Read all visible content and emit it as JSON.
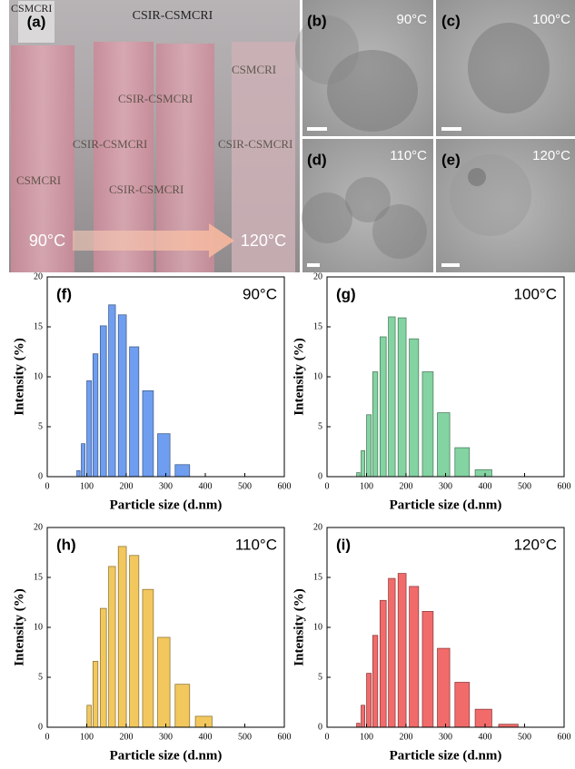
{
  "photos": {
    "a": {
      "label": "(a)",
      "top_text": "CSIR-CSMCRI",
      "corner_text": "CSMCRI",
      "start": "90°C",
      "end": "120°C",
      "watermarks": [
        "CSIR-CSMCRI",
        "CSIR-CSMCRI",
        "CSIR-CSMCRI",
        "CSMCRI",
        "CSIR-CSMCRI",
        "CSMCRI"
      ]
    },
    "tem": [
      {
        "label": "(b)",
        "temp": "90°C"
      },
      {
        "label": "(c)",
        "temp": "100°C"
      },
      {
        "label": "(d)",
        "temp": "110°C"
      },
      {
        "label": "(e)",
        "temp": "120°C"
      }
    ]
  },
  "chart_data": [
    {
      "type": "bar",
      "label": "(f)",
      "annotation": "90°C",
      "xlabel": "Particle size (d.nm)",
      "ylabel": "Intensity (%)",
      "color": "#6f9ef0",
      "x": [
        79,
        91,
        106,
        122,
        142,
        164,
        190,
        220,
        255,
        295,
        342
      ],
      "values": [
        0.6,
        3.3,
        9.6,
        12.3,
        15.1,
        17.2,
        16.2,
        13.0,
        8.6,
        4.3,
        1.2
      ],
      "xlim": [
        0,
        600
      ],
      "xticks": [
        0,
        100,
        200,
        300,
        400,
        500,
        600
      ],
      "ylim": [
        0,
        20
      ],
      "yticks": [
        0,
        5,
        10,
        15,
        20
      ]
    },
    {
      "type": "bar",
      "label": "(g)",
      "annotation": "100°C",
      "xlabel": "Particle size (d.nm)",
      "ylabel": "Intensity (%)",
      "color": "#84d3a2",
      "x": [
        79,
        91,
        106,
        122,
        142,
        164,
        190,
        220,
        255,
        295,
        342,
        396
      ],
      "values": [
        0.4,
        2.6,
        6.2,
        10.5,
        14.0,
        16.0,
        15.9,
        13.8,
        10.5,
        6.4,
        2.9,
        0.7
      ],
      "xlim": [
        0,
        600
      ],
      "xticks": [
        0,
        100,
        200,
        300,
        400,
        500,
        600
      ],
      "ylim": [
        0,
        20
      ],
      "yticks": [
        0,
        5,
        10,
        15,
        20
      ]
    },
    {
      "type": "bar",
      "label": "(h)",
      "annotation": "110°C",
      "xlabel": "Particle size (d.nm)",
      "ylabel": "Intensity (%)",
      "color": "#f2c85e",
      "x": [
        106,
        122,
        142,
        164,
        190,
        220,
        255,
        295,
        342,
        396
      ],
      "values": [
        2.2,
        6.6,
        11.9,
        16.1,
        18.1,
        17.2,
        13.8,
        9.0,
        4.3,
        1.1
      ],
      "xlim": [
        0,
        600
      ],
      "xticks": [
        0,
        100,
        200,
        300,
        400,
        500,
        600
      ],
      "ylim": [
        0,
        20
      ],
      "yticks": [
        0,
        5,
        10,
        15,
        20
      ]
    },
    {
      "type": "bar",
      "label": "(i)",
      "annotation": "120°C",
      "xlabel": "Particle size (d.nm)",
      "ylabel": "Intensity (%)",
      "color": "#f26b6b",
      "x": [
        79,
        91,
        106,
        122,
        142,
        164,
        190,
        220,
        255,
        295,
        342,
        396,
        459
      ],
      "values": [
        0.4,
        2.2,
        5.4,
        9.2,
        12.7,
        14.9,
        15.4,
        14.1,
        11.6,
        7.9,
        4.5,
        1.8,
        0.3
      ],
      "xlim": [
        0,
        600
      ],
      "xticks": [
        0,
        100,
        200,
        300,
        400,
        500,
        600
      ],
      "ylim": [
        0,
        20
      ],
      "yticks": [
        0,
        5,
        10,
        15,
        20
      ]
    }
  ]
}
